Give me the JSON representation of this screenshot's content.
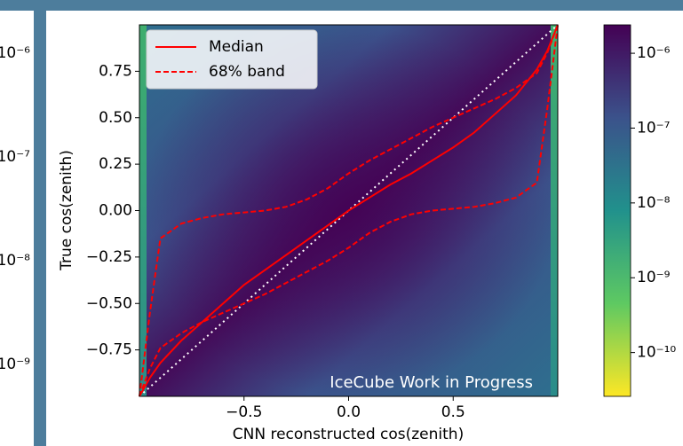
{
  "chart_data": {
    "type": "line",
    "xlabel": "CNN reconstructed cos(zenith)",
    "ylabel": "True cos(zenith)",
    "annotation": "IceCube Work in Progress",
    "xlim": [
      -1,
      1
    ],
    "ylim": [
      -1,
      1
    ],
    "xticks": [
      {
        "value": -0.5,
        "label": "−0.5"
      },
      {
        "value": 0,
        "label": "0.0"
      },
      {
        "value": 0.5,
        "label": "0.5"
      }
    ],
    "yticks": [
      {
        "value": -0.75,
        "label": "−0.75"
      },
      {
        "value": -0.5,
        "label": "−0.50"
      },
      {
        "value": -0.25,
        "label": "−0.25"
      },
      {
        "value": 0,
        "label": "0.00"
      },
      0.25,
      {
        "value": 0.5,
        "label": "0.50"
      },
      0.75
    ],
    "legend": "upper left",
    "x": [
      -1,
      -0.95,
      -0.9,
      -0.8,
      -0.7,
      -0.6,
      -0.5,
      -0.4,
      -0.3,
      -0.2,
      -0.1,
      0,
      0.1,
      0.2,
      0.3,
      0.4,
      0.5,
      0.6,
      0.7,
      0.8,
      0.9,
      0.95,
      1
    ],
    "series": [
      {
        "name": "Median",
        "color": "#ff0000",
        "style": "solid",
        "values": [
          -1,
          -0.9,
          -0.82,
          -0.7,
          -0.6,
          -0.5,
          -0.4,
          -0.32,
          -0.24,
          -0.16,
          -0.08,
          0,
          0.07,
          0.14,
          0.2,
          0.27,
          0.34,
          0.42,
          0.52,
          0.62,
          0.76,
          0.86,
          1
        ]
      },
      {
        "name": "68% band",
        "color": "#ff0000",
        "style": "dashed",
        "upper": [
          -1,
          -0.55,
          -0.15,
          -0.07,
          -0.04,
          -0.02,
          -0.01,
          0,
          0.02,
          0.06,
          0.12,
          0.2,
          0.27,
          0.33,
          0.39,
          0.45,
          0.5,
          0.55,
          0.6,
          0.66,
          0.74,
          0.85,
          1
        ],
        "lower": [
          -1,
          -0.85,
          -0.74,
          -0.66,
          -0.6,
          -0.55,
          -0.5,
          -0.45,
          -0.39,
          -0.33,
          -0.27,
          -0.2,
          -0.12,
          -0.06,
          -0.02,
          0,
          0.01,
          0.02,
          0.04,
          0.07,
          0.15,
          0.55,
          1
        ]
      }
    ],
    "colorbar": {
      "log": true,
      "lim": [
        2.6e-11,
        2.4e-06
      ],
      "ticks": [
        {
          "value": 1e-06,
          "label": "10⁻⁶"
        },
        {
          "value": 1e-07,
          "label": "10⁻⁷"
        },
        {
          "value": 1e-08,
          "label": "10⁻⁸"
        },
        {
          "value": 1e-09,
          "label": "10⁻⁹"
        },
        {
          "value": 1e-10,
          "label": "10⁻¹⁰"
        }
      ]
    },
    "left_panel_labels": [
      "10⁻⁶",
      "10⁻⁷",
      "10⁻⁸",
      "10⁻⁹"
    ]
  }
}
